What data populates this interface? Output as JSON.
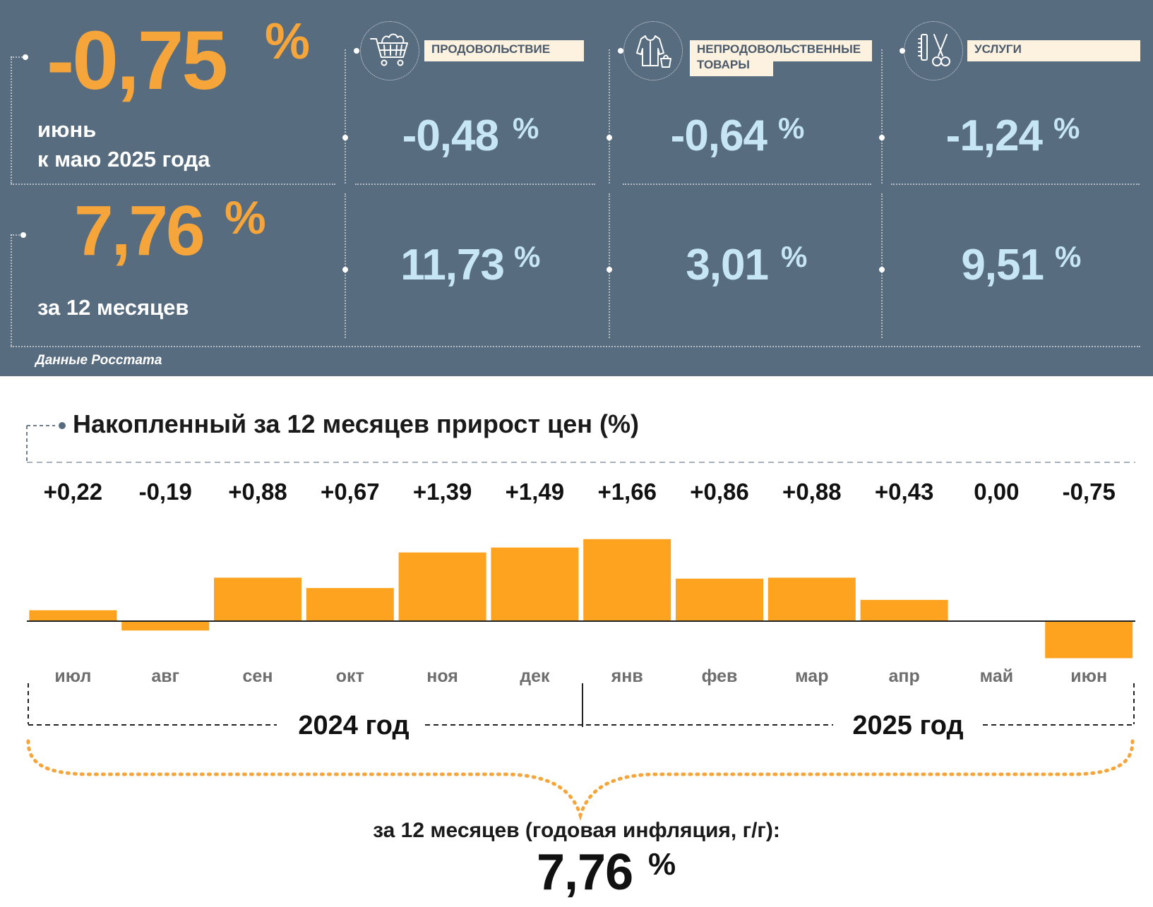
{
  "headline": {
    "monthly_value": "-0,75",
    "monthly_unit": "%",
    "monthly_label_line1": "июнь",
    "monthly_label_line2": "к маю 2025 года",
    "annual_value": "7,76",
    "annual_unit": "%",
    "annual_label": "за 12 месяцев"
  },
  "categories": [
    {
      "name": "ПРОДОВОЛЬСТВИЕ",
      "icon": "shopping-cart-icon",
      "monthly": "-0,48",
      "annual": "11,73",
      "unit": "%"
    },
    {
      "name": "НЕПРОДОВОЛЬСТВЕННЫЕ",
      "name_line2": "ТОВАРЫ",
      "icon": "clothing-icon",
      "monthly": "-0,64",
      "annual": "3,01",
      "unit": "%"
    },
    {
      "name": "УСЛУГИ",
      "icon": "scissors-comb-icon",
      "monthly": "-1,24",
      "annual": "9,51",
      "unit": "%"
    }
  ],
  "source": "Данные Росстата",
  "colors": {
    "panel": "#586c80",
    "orange": "#f5a53a",
    "light_blue": "#c7e6f5",
    "bar": "#fda31f"
  },
  "chart_data": {
    "type": "bar",
    "title": "Накопленный за 12 месяцев прирост цен (%)",
    "categories": [
      "июл",
      "авг",
      "сен",
      "окт",
      "ноя",
      "дек",
      "янв",
      "фев",
      "мар",
      "апр",
      "май",
      "июн"
    ],
    "values": [
      0.22,
      -0.19,
      0.88,
      0.67,
      1.39,
      1.49,
      1.66,
      0.86,
      0.88,
      0.43,
      0.0,
      -0.75
    ],
    "value_labels": [
      "+0,22",
      "-0,19",
      "+0,88",
      "+0,67",
      "+1,39",
      "+1,49",
      "+1,66",
      "+0,86",
      "+0,88",
      "+0,43",
      "0,00",
      "-0,75"
    ],
    "years": [
      "2024 год",
      "2025 год"
    ],
    "ylim": [
      -0.75,
      1.66
    ],
    "grid": false,
    "legend": "none"
  },
  "summary": {
    "label": "за 12 месяцев (годовая инфляция, г/г):",
    "value": "7,76",
    "unit": "%"
  }
}
